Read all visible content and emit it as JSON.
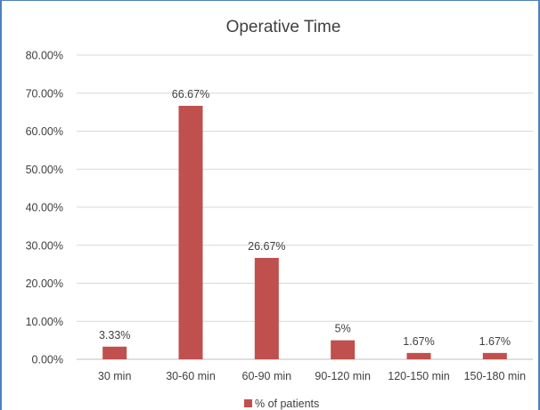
{
  "chart_data": {
    "type": "bar",
    "title": "Operative Time",
    "categories": [
      "30 min",
      "30-60 min",
      "60-90 min",
      "90-120 min",
      "120-150 min",
      "150-180 min"
    ],
    "series": [
      {
        "name": "% of patients",
        "values": [
          3.33,
          66.67,
          26.67,
          5,
          1.67,
          1.67
        ],
        "data_labels": [
          "3.33%",
          "66.67%",
          "26.67%",
          "5%",
          "1.67%",
          "1.67%"
        ]
      }
    ],
    "ylim": [
      0,
      80
    ],
    "yticks": [
      "0.00%",
      "10.00%",
      "20.00%",
      "30.00%",
      "40.00%",
      "50.00%",
      "60.00%",
      "70.00%",
      "80.00%"
    ],
    "grid": true,
    "legend_position": "bottom",
    "colors": {
      "bar": "#c0504d",
      "grid": "#d9d9d9",
      "frame": "#4f7fbf"
    }
  }
}
